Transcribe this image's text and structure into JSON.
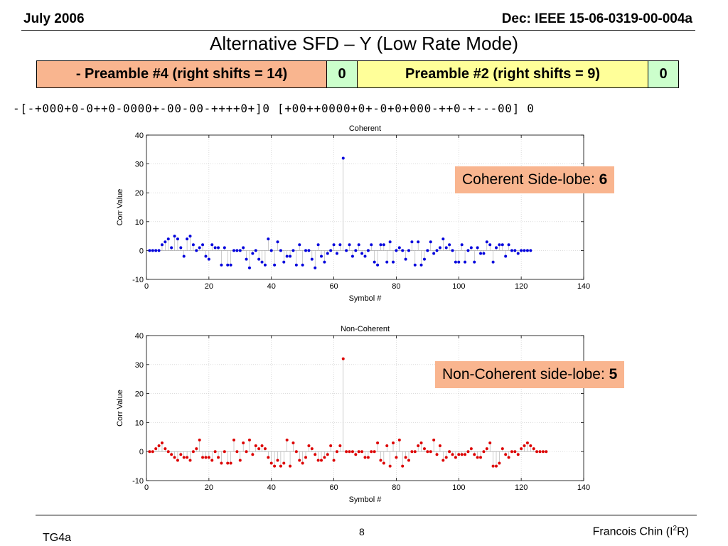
{
  "header": {
    "left": "July 2006",
    "right": "Dec: IEEE 15-06-0319-00-004a"
  },
  "title": "Alternative SFD – Y (Low Rate Mode)",
  "preamble": [
    {
      "text": "- Preamble #4 (right shifts = 14)",
      "color": "#F9B58F"
    },
    {
      "text": "0",
      "color": "#CCFFCC"
    },
    {
      "text": "Preamble #2 (right shifts = 9)",
      "color": "#FFFF99"
    },
    {
      "text": "0",
      "color": "#CCFFCC"
    }
  ],
  "sequence": "-[-+000+0-0++0-0000+-00-00-++++0+]0 [+00++0000+0+-0+0+000-++0-+---00] 0",
  "callouts": {
    "coherent_label": "Coherent Side-lobe: ",
    "coherent_value": "6",
    "noncoherent_label": "Non-Coherent side-lobe: ",
    "noncoherent_value": "5",
    "bg": "#F9B58F"
  },
  "footer": {
    "left": "TG4a",
    "page": "8",
    "author": "Francois Chin (I",
    "author_sup": "2",
    "author_end": "R)"
  },
  "chart_data": [
    {
      "type": "scatter",
      "style": "stem",
      "title": "Coherent",
      "xlabel": "Symbol #",
      "ylabel": "Corr Value",
      "xlim": [
        0,
        140
      ],
      "ylim": [
        -10,
        40
      ],
      "xticks": [
        0,
        20,
        40,
        60,
        80,
        100,
        120,
        140
      ],
      "yticks": [
        -10,
        0,
        10,
        20,
        30,
        40
      ],
      "grid": true,
      "color": "#0000DD",
      "x_start": 1,
      "values": [
        0,
        0,
        0,
        0,
        2,
        3,
        4,
        1,
        5,
        4,
        1,
        -2,
        4,
        5,
        2,
        0,
        1,
        2,
        -2,
        -3,
        2,
        1,
        1,
        -5,
        1,
        -5,
        -5,
        0,
        0,
        0,
        1,
        -3,
        -6,
        -1,
        0,
        -3,
        -4,
        -5,
        4,
        0,
        -5,
        3,
        0,
        -4,
        -2,
        -2,
        0,
        -5,
        2,
        -5,
        0,
        0,
        -3,
        -6,
        2,
        -2,
        -4,
        -1,
        0,
        2,
        -1,
        2,
        32,
        0,
        2,
        -2,
        0,
        2,
        -1,
        -2,
        0,
        2,
        -4,
        -5,
        2,
        2,
        -4,
        3,
        -4,
        0,
        1,
        0,
        -3,
        0,
        3,
        -5,
        3,
        -5,
        -3,
        0,
        3,
        -1,
        0,
        1,
        4,
        1,
        2,
        0,
        -4,
        -4,
        2,
        -4,
        0,
        1,
        -4,
        1,
        -1,
        -1,
        3,
        2,
        -4,
        1,
        2,
        2,
        -2,
        2,
        0,
        0,
        -1,
        0,
        0,
        0,
        0
      ],
      "annotation": "Coherent Side-lobe: 6"
    },
    {
      "type": "scatter",
      "style": "stem",
      "title": "Non-Coherent",
      "xlabel": "Symbol #",
      "ylabel": "Corr Value",
      "xlim": [
        0,
        140
      ],
      "ylim": [
        -10,
        40
      ],
      "xticks": [
        0,
        20,
        40,
        60,
        80,
        100,
        120,
        140
      ],
      "yticks": [
        -10,
        0,
        10,
        20,
        30,
        40
      ],
      "grid": true,
      "color": "#DD0000",
      "x_start": 1,
      "values": [
        0,
        0,
        1,
        2,
        3,
        1,
        0,
        -1,
        -2,
        -3,
        -1,
        -2,
        -2,
        -3,
        0,
        1,
        4,
        -2,
        -2,
        -2,
        -3,
        0,
        -2,
        -4,
        0,
        -4,
        -4,
        4,
        0,
        -3,
        3,
        0,
        4,
        -1,
        2,
        1,
        2,
        1,
        -2,
        -4,
        -5,
        -3,
        -5,
        -4,
        4,
        -5,
        3,
        0,
        -3,
        -4,
        -2,
        2,
        1,
        -1,
        -3,
        -3,
        -2,
        -1,
        2,
        -3,
        0,
        2,
        32,
        0,
        0,
        0,
        -1,
        0,
        0,
        -2,
        -2,
        0,
        0,
        3,
        -3,
        -4,
        2,
        -5,
        3,
        -2,
        4,
        -5,
        -2,
        -3,
        0,
        0,
        2,
        3,
        1,
        0,
        0,
        4,
        -1,
        2,
        -3,
        -2,
        0,
        -1,
        -2,
        -1,
        -1,
        -1,
        0,
        1,
        -1,
        -2,
        -2,
        0,
        1,
        3,
        -5,
        -5,
        -4,
        1,
        -1,
        -2,
        0,
        0,
        -1,
        1,
        2,
        3,
        2,
        1,
        0,
        0,
        0,
        0
      ],
      "annotation": "Non-Coherent side-lobe: 5"
    }
  ]
}
